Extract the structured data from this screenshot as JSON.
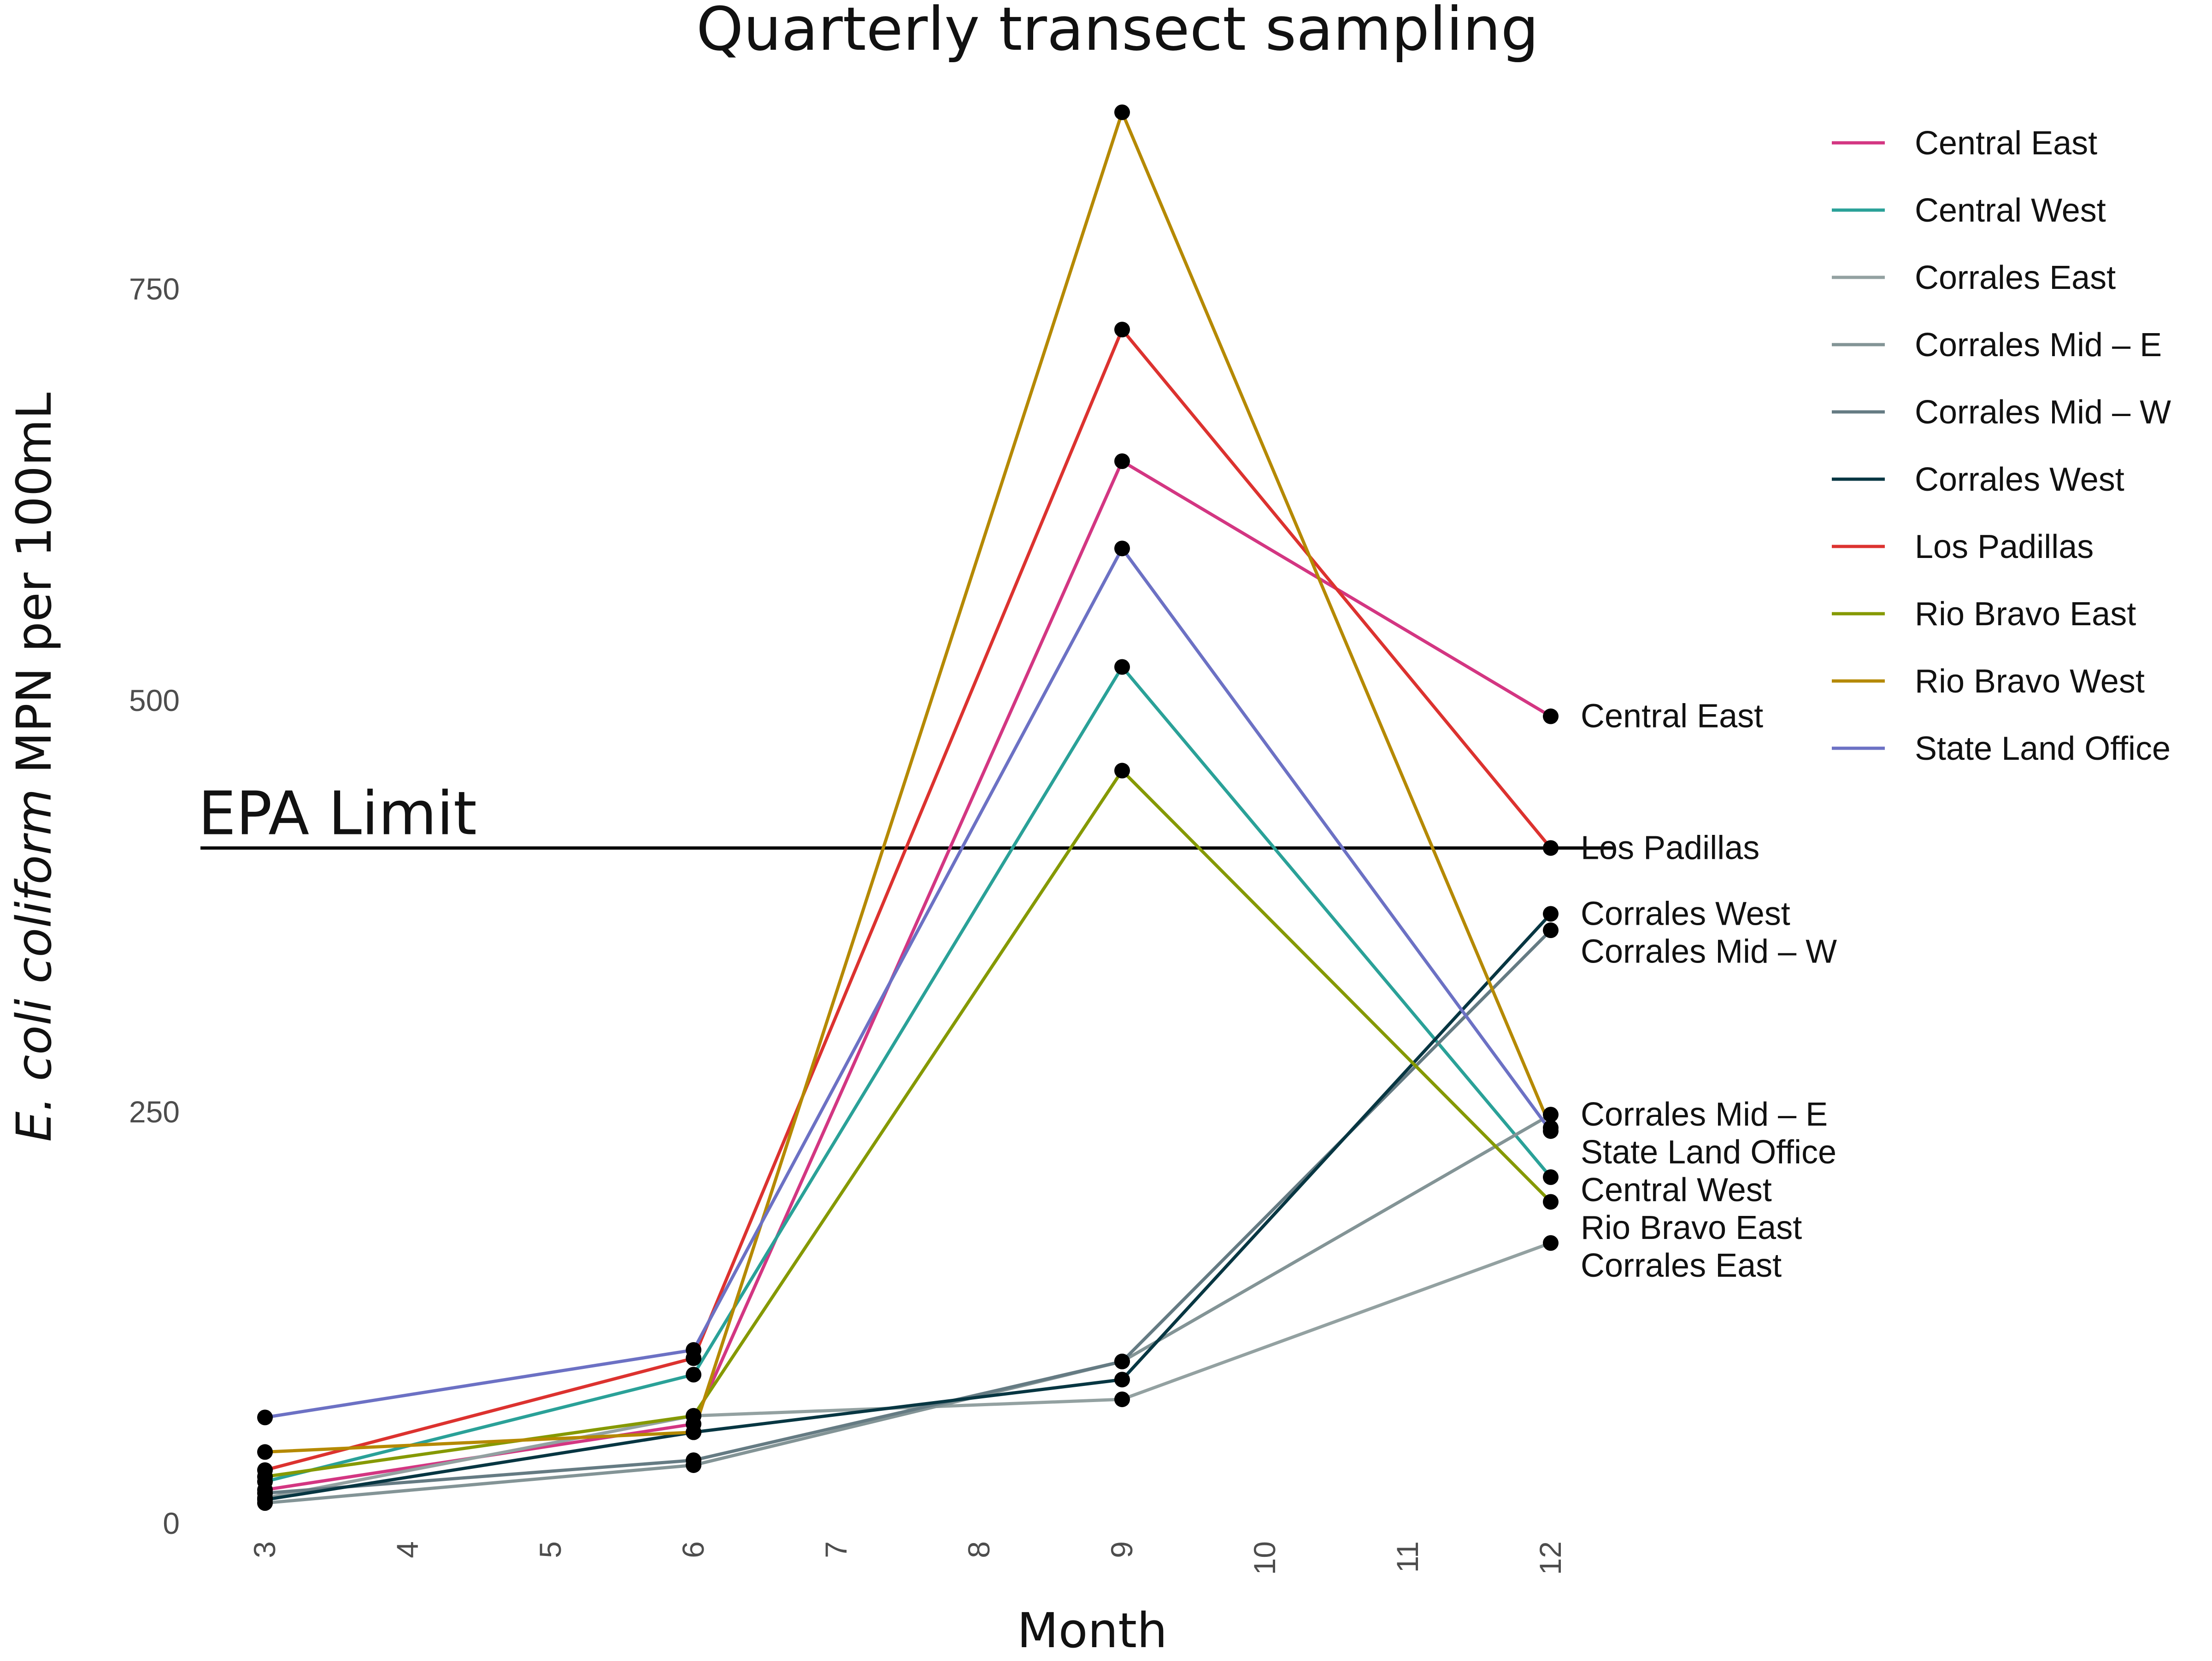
{
  "chart_data": {
    "type": "line",
    "title": "Quarterly transect sampling",
    "xlabel": "Month",
    "ylabel_italic": "E. coli coliform",
    "ylabel_rest": " MPN per 100mL",
    "x": [
      3,
      6,
      9,
      12
    ],
    "xlim": [
      3,
      12
    ],
    "ylim": [
      0,
      860
    ],
    "x_ticks": [
      "3",
      "4",
      "5",
      "6",
      "7",
      "8",
      "9",
      "10",
      "11",
      "12"
    ],
    "y_ticks": [
      "0",
      "250",
      "500",
      "750"
    ],
    "grid": false,
    "legend_position": "right",
    "reference_line": {
      "label": "EPA Limit",
      "value": 410,
      "color": "#000000"
    },
    "series": [
      {
        "name": "Central East",
        "color": "#d33682",
        "values": [
          20,
          60,
          645,
          490
        ]
      },
      {
        "name": "Central West",
        "color": "#2aa198",
        "values": [
          25,
          90,
          520,
          210
        ]
      },
      {
        "name": "Corrales East",
        "color": "#93a1a1",
        "values": [
          15,
          65,
          75,
          170
        ]
      },
      {
        "name": "Corrales Mid – E",
        "color": "#839496",
        "values": [
          12,
          35,
          98,
          248
        ]
      },
      {
        "name": "Corrales Mid – W",
        "color": "#657b83",
        "values": [
          18,
          38,
          98,
          360
        ]
      },
      {
        "name": "Corrales West",
        "color": "#073642",
        "values": [
          14,
          55,
          87,
          370
        ]
      },
      {
        "name": "Los Padillas",
        "color": "#dc322f",
        "values": [
          32,
          100,
          725,
          410
        ]
      },
      {
        "name": "Rio Bravo East",
        "color": "#859900",
        "values": [
          28,
          65,
          457,
          195
        ]
      },
      {
        "name": "Rio Bravo West",
        "color": "#b58900",
        "values": [
          43,
          55,
          857,
          240
        ]
      },
      {
        "name": "State Land Office",
        "color": "#6c71c4",
        "values": [
          64,
          105,
          592,
          238
        ]
      }
    ],
    "end_labels": [
      {
        "text": "Central East",
        "series": "Central East"
      },
      {
        "text": "Los Padillas",
        "series": "Los Padillas"
      },
      {
        "text": "Corrales West",
        "series": "Corrales West"
      },
      {
        "text": "Corrales Mid – W",
        "series": "Corrales Mid – W"
      },
      {
        "text": "Corrales Mid – E",
        "series": "Corrales Mid – E"
      },
      {
        "text": "State Land Office",
        "series": "State Land Office"
      },
      {
        "text": "Central West",
        "series": "Central West"
      },
      {
        "text": "Rio Bravo East",
        "series": "Rio Bravo East"
      },
      {
        "text": "Corrales East",
        "series": "Corrales East"
      }
    ]
  }
}
